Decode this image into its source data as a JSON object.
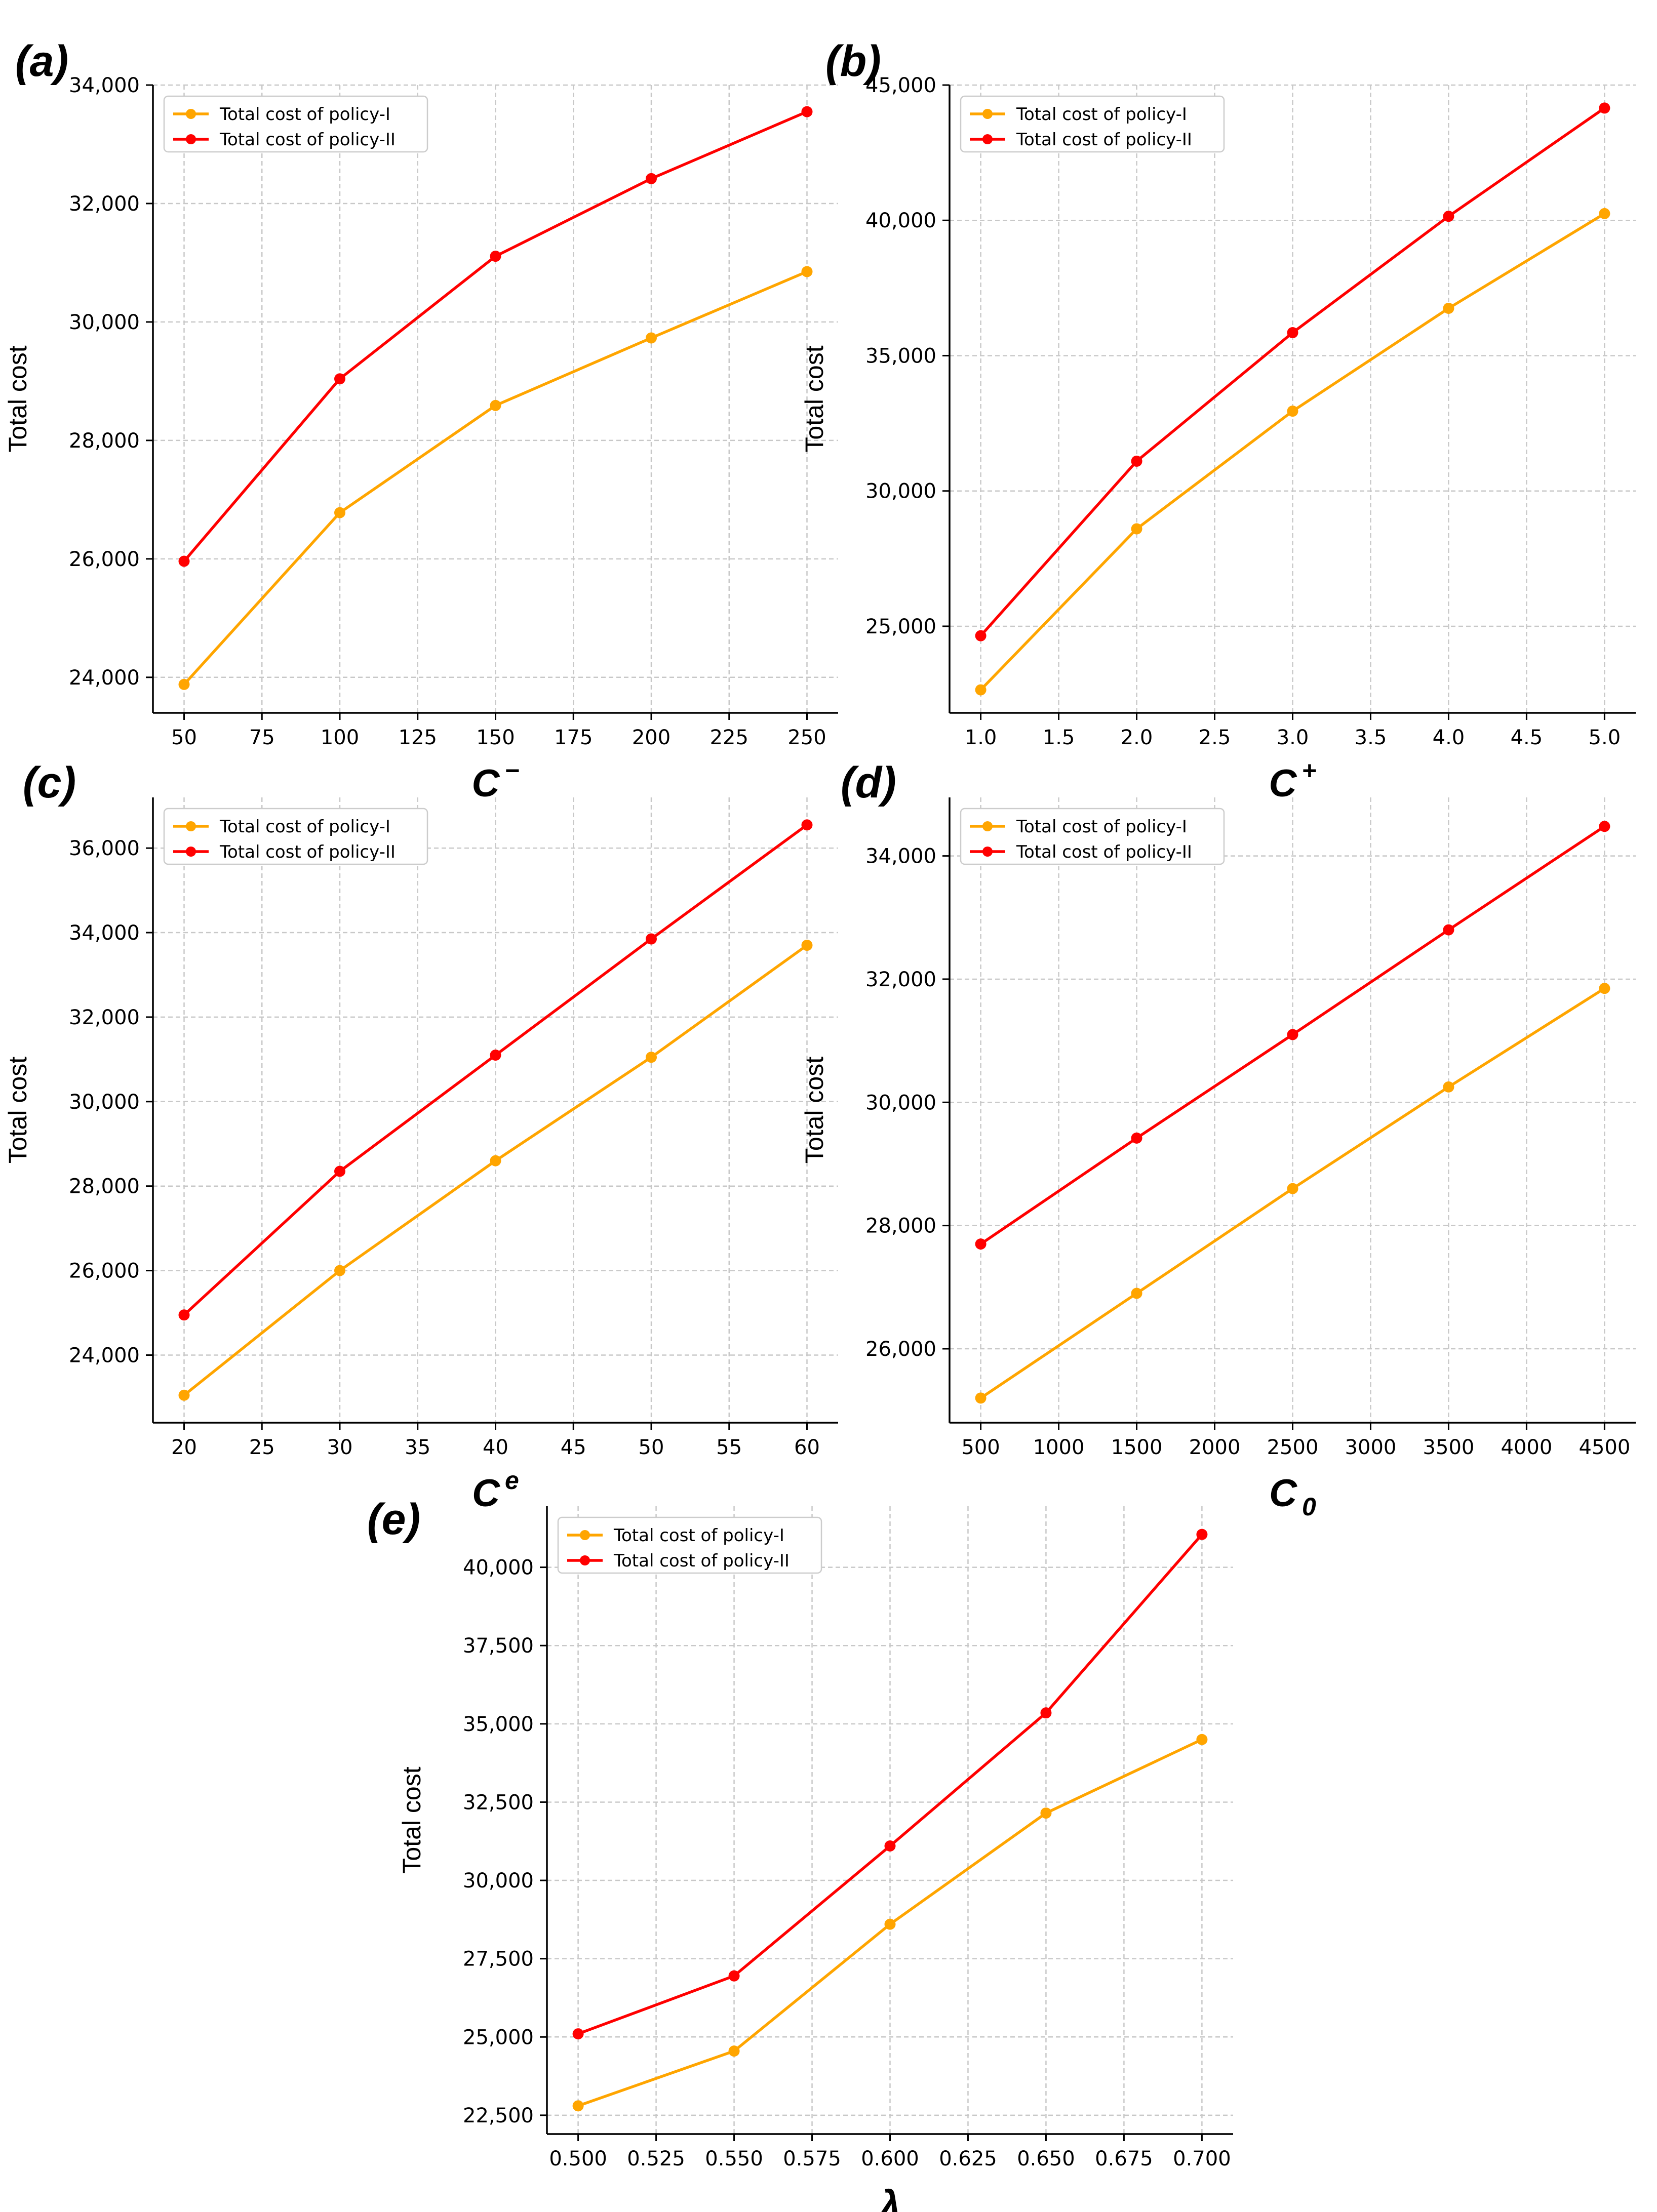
{
  "chart_data": [
    {
      "type": "line",
      "panel_label": "(a)",
      "xlabel": "C",
      "xlabel_mark": "−",
      "xlabel_mark_pos": "super",
      "ylabel": "Total cost",
      "x": [
        50,
        100,
        150,
        200,
        250
      ],
      "xticks": [
        "50",
        "75",
        "100",
        "125",
        "150",
        "175",
        "200",
        "225",
        "250"
      ],
      "xtick_values": [
        50,
        75,
        100,
        125,
        150,
        175,
        200,
        225,
        250
      ],
      "xlim": [
        40,
        260
      ],
      "yticks": [
        "24,000",
        "26,000",
        "28,000",
        "30,000",
        "32,000",
        "34,000"
      ],
      "ytick_values": [
        24000,
        26000,
        28000,
        30000,
        32000,
        34000
      ],
      "ylim": [
        23400,
        34000
      ],
      "grid": true,
      "legend_position": "top-left",
      "series": [
        {
          "name": "Total cost of policy-I",
          "color": "#FFA500",
          "values": [
            23880,
            26780,
            28590,
            29730,
            30850
          ]
        },
        {
          "name": "Total cost of policy-II",
          "color": "#FF0000",
          "values": [
            25960,
            29040,
            31110,
            32420,
            33550
          ]
        }
      ]
    },
    {
      "type": "line",
      "panel_label": "(b)",
      "xlabel": "C",
      "xlabel_mark": "+",
      "xlabel_mark_pos": "super",
      "ylabel": "Total cost",
      "x": [
        1.0,
        2.0,
        3.0,
        4.0,
        5.0
      ],
      "xticks": [
        "1.0",
        "1.5",
        "2.0",
        "2.5",
        "3.0",
        "3.5",
        "4.0",
        "4.5",
        "5.0"
      ],
      "xtick_values": [
        1.0,
        1.5,
        2.0,
        2.5,
        3.0,
        3.5,
        4.0,
        4.5,
        5.0
      ],
      "xlim": [
        0.8,
        5.2
      ],
      "yticks": [
        "25,000",
        "30,000",
        "35,000",
        "40,000",
        "45,000"
      ],
      "ytick_values": [
        25000,
        30000,
        35000,
        40000,
        45000
      ],
      "ylim": [
        21800,
        45000
      ],
      "grid": true,
      "legend_position": "top-left",
      "series": [
        {
          "name": "Total cost of policy-I",
          "color": "#FFA500",
          "values": [
            22650,
            28600,
            32950,
            36750,
            40250
          ]
        },
        {
          "name": "Total cost of policy-II",
          "color": "#FF0000",
          "values": [
            24650,
            31100,
            35850,
            40150,
            44150
          ]
        }
      ]
    },
    {
      "type": "line",
      "panel_label": "(c)",
      "xlabel": "C",
      "xlabel_mark": "e",
      "xlabel_mark_pos": "super",
      "ylabel": "Total cost",
      "x": [
        20,
        30,
        40,
        50,
        60
      ],
      "xticks": [
        "20",
        "25",
        "30",
        "35",
        "40",
        "45",
        "50",
        "55",
        "60"
      ],
      "xtick_values": [
        20,
        25,
        30,
        35,
        40,
        45,
        50,
        55,
        60
      ],
      "xlim": [
        18,
        62
      ],
      "yticks": [
        "24,000",
        "26,000",
        "28,000",
        "30,000",
        "32,000",
        "34,000",
        "36,000"
      ],
      "ytick_values": [
        24000,
        26000,
        28000,
        30000,
        32000,
        34000,
        36000
      ],
      "ylim": [
        22400,
        37200
      ],
      "grid": true,
      "legend_position": "top-left",
      "series": [
        {
          "name": "Total cost of policy-I",
          "color": "#FFA500",
          "values": [
            23050,
            26000,
            28600,
            31050,
            33700
          ]
        },
        {
          "name": "Total cost of policy-II",
          "color": "#FF0000",
          "values": [
            24950,
            28350,
            31100,
            33850,
            36550
          ]
        }
      ]
    },
    {
      "type": "line",
      "panel_label": "(d)",
      "xlabel": "C",
      "xlabel_mark": "0",
      "xlabel_mark_pos": "sub",
      "ylabel": "Total cost",
      "x": [
        500,
        1500,
        2500,
        3500,
        4500
      ],
      "xticks": [
        "500",
        "1000",
        "1500",
        "2000",
        "2500",
        "3000",
        "3500",
        "4000",
        "4500"
      ],
      "xtick_values": [
        500,
        1000,
        1500,
        2000,
        2500,
        3000,
        3500,
        4000,
        4500
      ],
      "xlim": [
        300,
        4700
      ],
      "yticks": [
        "26,000",
        "28,000",
        "30,000",
        "32,000",
        "34,000"
      ],
      "ytick_values": [
        26000,
        28000,
        30000,
        32000,
        34000
      ],
      "ylim": [
        24800,
        34950
      ],
      "grid": true,
      "legend_position": "top-left",
      "series": [
        {
          "name": "Total cost of policy-I",
          "color": "#FFA500",
          "values": [
            25200,
            26900,
            28600,
            30250,
            31850
          ]
        },
        {
          "name": "Total cost of policy-II",
          "color": "#FF0000",
          "values": [
            27700,
            29420,
            31100,
            32800,
            34480
          ]
        }
      ]
    },
    {
      "type": "line",
      "panel_label": "(e)",
      "xlabel": "λ",
      "xlabel_mark": "",
      "xlabel_mark_pos": "super",
      "ylabel": "Total cost",
      "x": [
        0.5,
        0.55,
        0.6,
        0.65,
        0.7
      ],
      "xticks": [
        "0.500",
        "0.525",
        "0.550",
        "0.575",
        "0.600",
        "0.625",
        "0.650",
        "0.675",
        "0.700"
      ],
      "xtick_values": [
        0.5,
        0.525,
        0.55,
        0.575,
        0.6,
        0.625,
        0.65,
        0.675,
        0.7
      ],
      "xlim": [
        0.49,
        0.71
      ],
      "yticks": [
        "22,500",
        "25,000",
        "27,500",
        "30,000",
        "32,500",
        "35,000",
        "37,500",
        "40,000"
      ],
      "ytick_values": [
        22500,
        25000,
        27500,
        30000,
        32500,
        35000,
        37500,
        40000
      ],
      "ylim": [
        21900,
        41950
      ],
      "grid": true,
      "legend_position": "top-left",
      "series": [
        {
          "name": "Total cost of policy-I",
          "color": "#FFA500",
          "values": [
            22800,
            24550,
            28600,
            32150,
            34500
          ]
        },
        {
          "name": "Total cost of policy-II",
          "color": "#FF0000",
          "values": [
            25100,
            26950,
            31100,
            35350,
            41050
          ]
        }
      ]
    }
  ]
}
